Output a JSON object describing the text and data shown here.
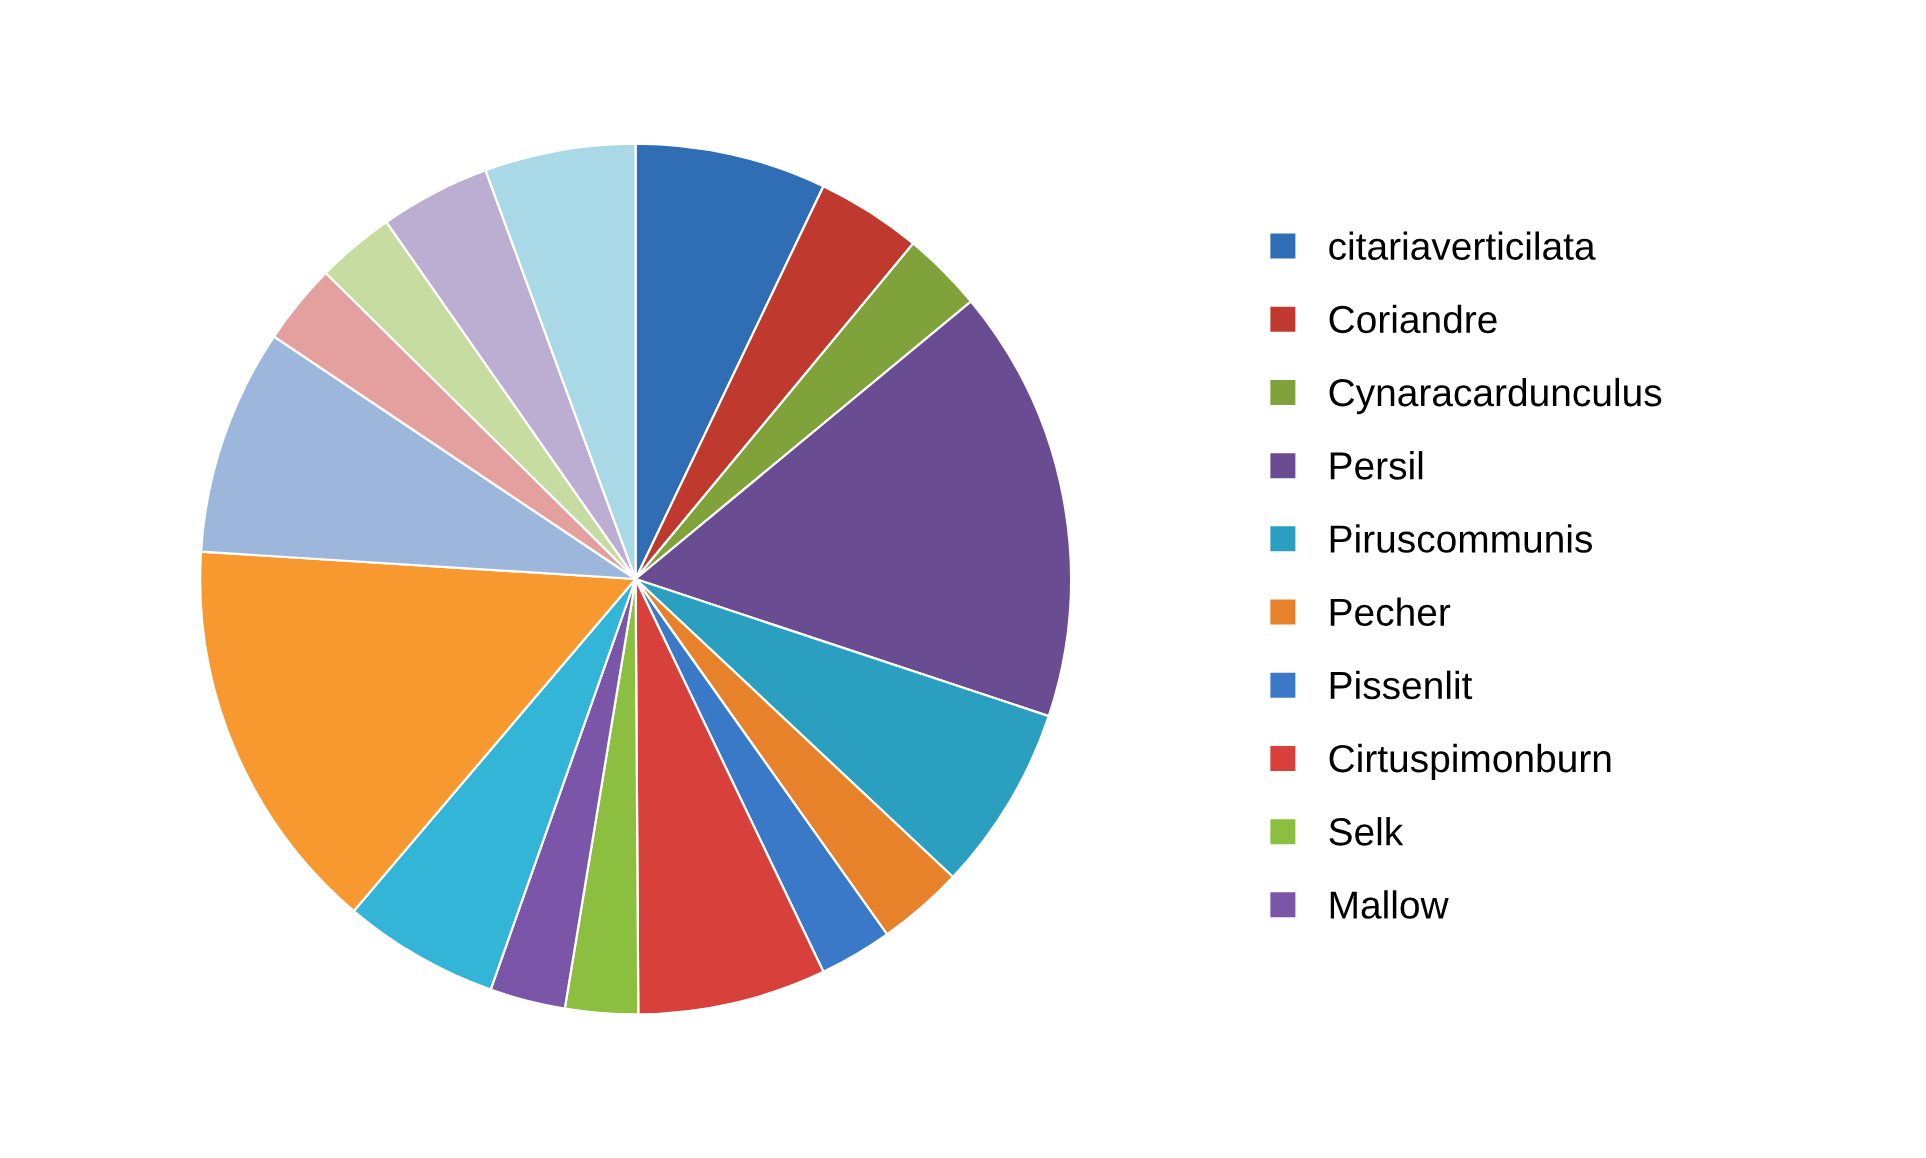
{
  "chart_data": {
    "type": "pie",
    "legend": "right",
    "categories": [
      "citariaverticilata",
      "Coriandre",
      "Cynaracardunculus",
      "Persil",
      "Piruscommunis",
      "Pecher",
      "Pissenlit",
      "Cirtuspimonburn",
      "Selk",
      "Mallow",
      null,
      null,
      null,
      null,
      null,
      null,
      null
    ],
    "values": [
      7.1,
      3.9,
      3.0,
      16.1,
      6.9,
      3.2,
      2.7,
      7.0,
      2.7,
      2.8,
      5.8,
      14.8,
      8.4,
      3.0,
      2.9,
      4.1,
      5.6
    ],
    "colors": [
      "#2f6db5",
      "#c0392f",
      "#7fa33a",
      "#6a4c93",
      "#2a9fc0",
      "#e8822a",
      "#3a78c8",
      "#d8403c",
      "#8cbf3f",
      "#7a55a8",
      "#33b5d8",
      "#f7992f",
      "#9db7dc",
      "#e4a09e",
      "#c6dca0",
      "#bcaed2",
      "#a9d8e6"
    ]
  }
}
